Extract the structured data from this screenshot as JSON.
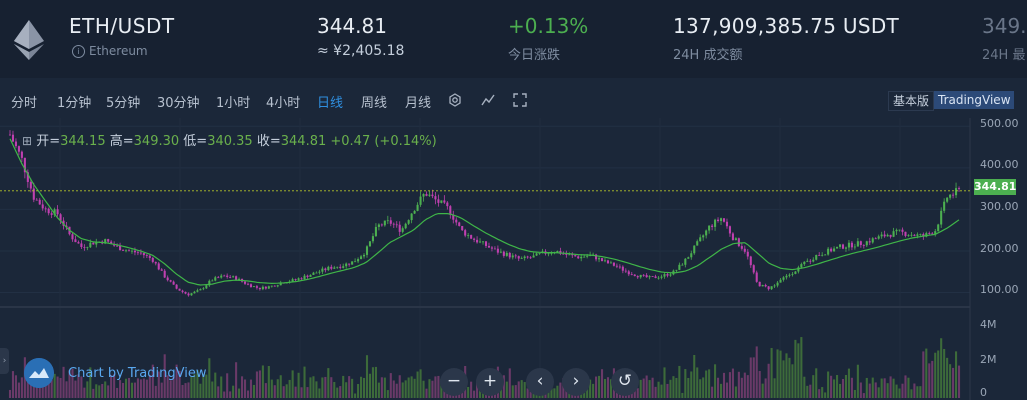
{
  "header": {
    "logo_icon": "ethereum-logo-icon",
    "pair": "ETH/USDT",
    "coin_name": "Ethereum",
    "price": "344.81",
    "price_cny": "≈ ¥2,405.18",
    "change_pct": "+0.13%",
    "change_label": "今日涨跌",
    "volume_24h": "137,909,385.75 USDT",
    "volume_label": "24H 成交额",
    "high_24h": "349.",
    "high_label": "24H 最"
  },
  "toolbar": {
    "intervals": [
      "分时",
      "1分钟",
      "5分钟",
      "30分钟",
      "1小时",
      "4小时",
      "日线",
      "周线",
      "月线"
    ],
    "active_interval": "日线",
    "icons": [
      "settings-icon",
      "indicators-icon",
      "fullscreen-icon"
    ],
    "version_basic": "基本版",
    "version_tradingview": "TradingView"
  },
  "ohlc": {
    "open_label": "开=",
    "open": "344.15",
    "high_label": "高=",
    "high": "349.30",
    "low_label": "低=",
    "low": "340.35",
    "close_label": "收=",
    "close": "344.81",
    "change": "+0.47 (+0.14%)"
  },
  "price_axis": [
    "500.00",
    "400.00",
    "300.00",
    "200.00",
    "100.00"
  ],
  "last_price_tag": "344.81",
  "volume_axis": [
    "4M",
    "2M",
    "0"
  ],
  "branding": "Chart by TradingView",
  "chart_controls": [
    "−",
    "+",
    "‹",
    "›",
    "↺"
  ],
  "colors": {
    "up": "#4caf50",
    "down": "#c040b0",
    "ma_line": "#3fb548",
    "accent": "#2f8fe0"
  },
  "chart_data": {
    "type": "line",
    "title": "",
    "xlabel": "",
    "ylabel": "",
    "ylim": [
      70,
      520
    ],
    "grid": true,
    "series": [
      {
        "values": [
          480,
          420,
          330,
          300,
          290,
          240,
          210,
          220,
          225,
          210,
          200,
          195,
          180,
          140,
          110,
          95,
          105,
          130,
          140,
          135,
          120,
          110,
          115,
          125,
          130,
          140,
          150,
          160,
          165,
          175,
          200,
          260,
          270,
          250,
          300,
          340,
          320,
          300,
          250,
          230,
          215,
          200,
          190,
          180,
          185,
          195,
          200,
          190,
          185,
          190,
          175,
          165,
          150,
          140,
          135,
          140,
          150,
          180,
          220,
          260,
          280,
          230,
          200,
          120,
          110,
          130,
          150,
          170,
          190,
          200,
          210,
          215,
          220,
          230,
          240,
          245,
          240,
          235,
          250,
          330,
          345
        ]
      },
      {
        "values": [
          470,
          410,
          360,
          320,
          280,
          250,
          230,
          222,
          220,
          215,
          208,
          200,
          190,
          170,
          145,
          125,
          118,
          120,
          127,
          130,
          128,
          124,
          122,
          123,
          126,
          131,
          138,
          146,
          153,
          160,
          172,
          195,
          220,
          235,
          250,
          275,
          290,
          290,
          280,
          262,
          245,
          230,
          216,
          205,
          198,
          196,
          196,
          194,
          191,
          190,
          186,
          180,
          172,
          163,
          155,
          149,
          147,
          152,
          165,
          185,
          205,
          218,
          220,
          195,
          170,
          158,
          155,
          160,
          168,
          177,
          186,
          194,
          201,
          208,
          216,
          224,
          231,
          236,
          240,
          255,
          275
        ]
      }
    ],
    "volume_ylim": [
      0,
      5
    ]
  }
}
